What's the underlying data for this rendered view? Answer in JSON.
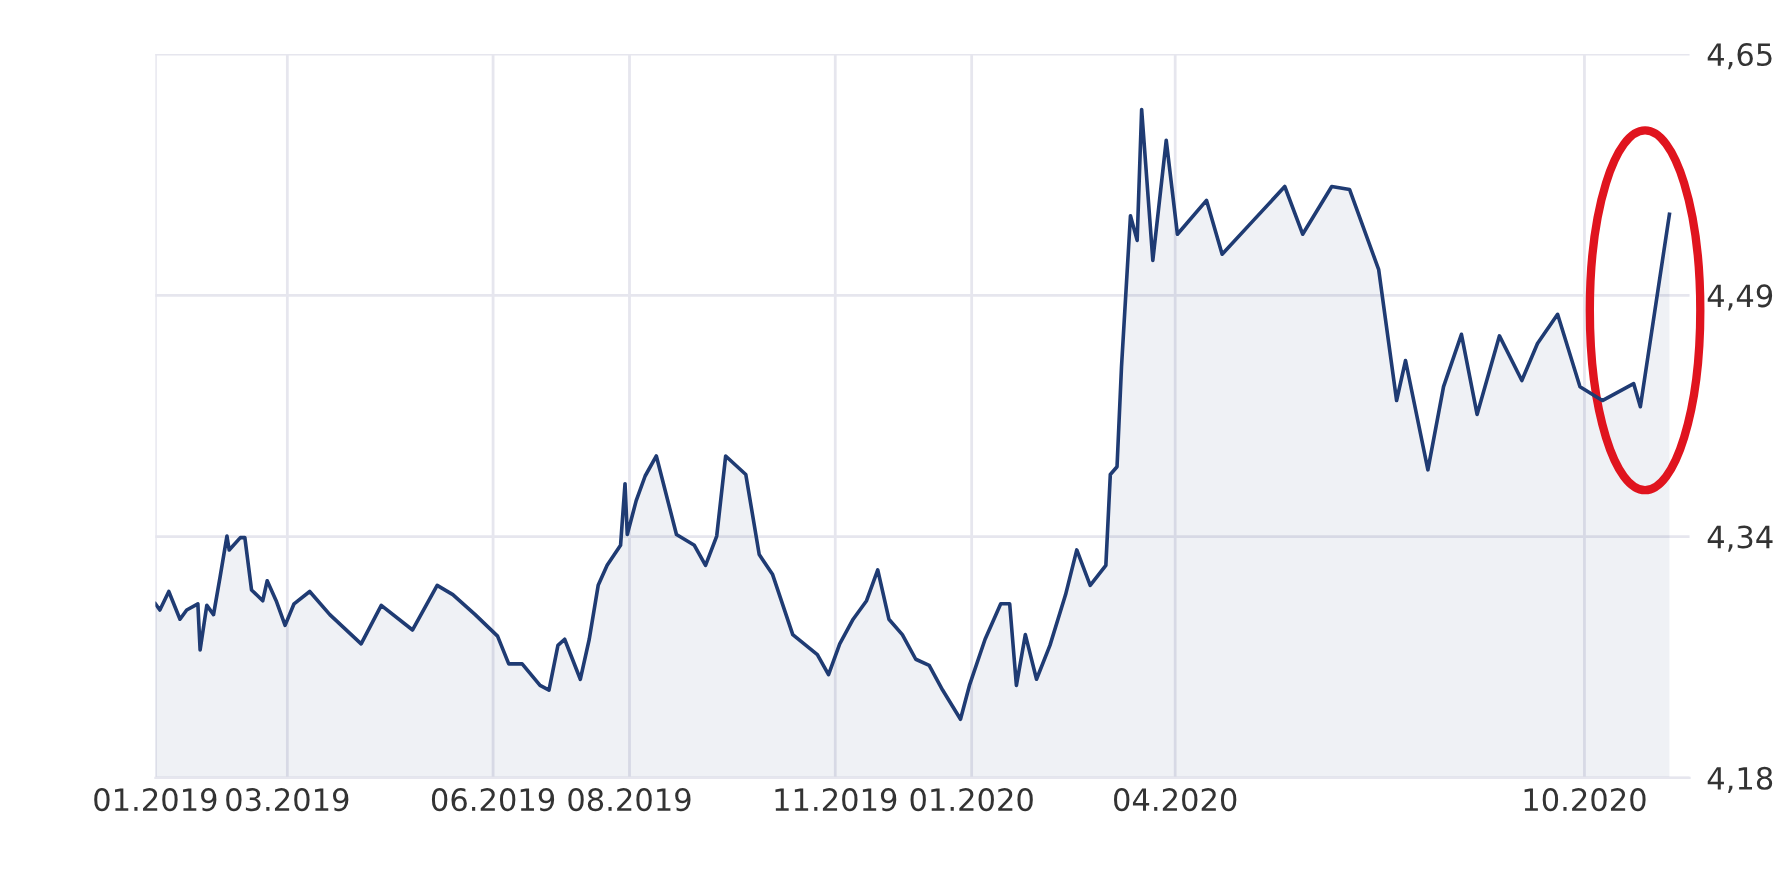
{
  "chart_data": {
    "type": "area",
    "x": [
      "2019-01-01",
      "2019-01-03",
      "2019-01-07",
      "2019-01-12",
      "2019-01-15",
      "2019-01-20",
      "2019-01-21",
      "2019-01-24",
      "2019-01-27",
      "2019-01-30",
      "2019-02-02",
      "2019-02-03",
      "2019-02-08",
      "2019-02-10",
      "2019-02-13",
      "2019-02-18",
      "2019-02-20",
      "2019-02-24",
      "2019-02-28",
      "2019-03-04",
      "2019-03-11",
      "2019-03-20",
      "2019-04-03",
      "2019-04-12",
      "2019-04-26",
      "2019-05-07",
      "2019-05-14",
      "2019-05-24",
      "2019-06-03",
      "2019-06-08",
      "2019-06-14",
      "2019-06-22",
      "2019-06-26",
      "2019-06-30",
      "2019-07-03",
      "2019-07-10",
      "2019-07-14",
      "2019-07-18",
      "2019-07-22",
      "2019-07-28",
      "2019-07-30",
      "2019-07-31",
      "2019-08-04",
      "2019-08-08",
      "2019-08-13",
      "2019-08-22",
      "2019-08-30",
      "2019-09-04",
      "2019-09-09",
      "2019-09-13",
      "2019-09-22",
      "2019-09-28",
      "2019-10-04",
      "2019-10-13",
      "2019-10-24",
      "2019-10-29",
      "2019-11-03",
      "2019-11-09",
      "2019-11-15",
      "2019-11-20",
      "2019-11-25",
      "2019-12-01",
      "2019-12-07",
      "2019-12-13",
      "2019-12-19",
      "2019-12-27",
      "2019-12-31",
      "2020-01-07",
      "2020-01-14",
      "2020-01-18",
      "2020-01-21",
      "2020-01-25",
      "2020-01-30",
      "2020-02-05",
      "2020-02-12",
      "2020-02-17",
      "2020-02-23",
      "2020-03-01",
      "2020-03-03",
      "2020-03-06",
      "2020-03-08",
      "2020-03-12",
      "2020-03-15",
      "2020-03-17",
      "2020-03-22",
      "2020-03-28",
      "2020-04-02",
      "2020-04-15",
      "2020-04-22",
      "2020-05-06",
      "2020-05-20",
      "2020-05-28",
      "2020-06-10",
      "2020-06-18",
      "2020-07-01",
      "2020-07-09",
      "2020-07-13",
      "2020-07-23",
      "2020-07-30",
      "2020-08-07",
      "2020-08-14",
      "2020-08-24",
      "2020-09-03",
      "2020-09-10",
      "2020-09-19",
      "2020-09-29",
      "2020-10-09",
      "2020-10-23",
      "2020-10-26",
      "2020-11-08"
    ],
    "series": [
      {
        "color": "#1f3b73",
        "values": [
          4.293,
          4.289,
          4.301,
          4.283,
          4.289,
          4.293,
          4.263,
          4.292,
          4.286,
          4.311,
          4.337,
          4.328,
          4.336,
          4.336,
          4.302,
          4.295,
          4.308,
          4.295,
          4.279,
          4.293,
          4.301,
          4.286,
          4.267,
          4.292,
          4.276,
          4.305,
          4.299,
          4.286,
          4.272,
          4.254,
          4.254,
          4.24,
          4.237,
          4.266,
          4.27,
          4.244,
          4.27,
          4.305,
          4.318,
          4.331,
          4.371,
          4.338,
          4.36,
          4.376,
          4.389,
          4.338,
          4.331,
          4.318,
          4.337,
          4.389,
          4.377,
          4.325,
          4.312,
          4.273,
          4.26,
          4.247,
          4.267,
          4.283,
          4.295,
          4.315,
          4.283,
          4.273,
          4.257,
          4.253,
          4.237,
          4.218,
          4.24,
          4.27,
          4.293,
          4.293,
          4.24,
          4.273,
          4.244,
          4.266,
          4.299,
          4.328,
          4.305,
          4.318,
          4.377,
          4.382,
          4.447,
          4.545,
          4.529,
          4.614,
          4.516,
          4.594,
          4.533,
          4.555,
          4.52,
          4.542,
          4.564,
          4.533,
          4.564,
          4.562,
          4.51,
          4.425,
          4.451,
          4.38,
          4.434,
          4.468,
          4.416,
          4.467,
          4.438,
          4.462,
          4.481,
          4.434,
          4.425,
          4.436,
          4.421,
          4.546
        ]
      }
    ],
    "xlim": [
      "2019-01-01",
      "2020-11-17"
    ],
    "xticks": [
      {
        "value": "2019-01-01",
        "label": "01.2019"
      },
      {
        "value": "2019-03-01",
        "label": "03.2019"
      },
      {
        "value": "2019-06-01",
        "label": "06.2019"
      },
      {
        "value": "2019-08-01",
        "label": "08.2019"
      },
      {
        "value": "2019-11-01",
        "label": "11.2019"
      },
      {
        "value": "2020-01-01",
        "label": "01.2020"
      },
      {
        "value": "2020-04-01",
        "label": "04.2020"
      },
      {
        "value": "2020-10-01",
        "label": "10.2020"
      }
    ],
    "ylim": [
      4.18,
      4.65
    ],
    "yticks": [
      {
        "value": 4.18,
        "label": "4,18"
      },
      {
        "value": 4.3367,
        "label": "4,34"
      },
      {
        "value": 4.4933,
        "label": "4,49"
      },
      {
        "value": 4.65,
        "label": "4,65"
      }
    ],
    "grid": true,
    "legend": false
  }
}
